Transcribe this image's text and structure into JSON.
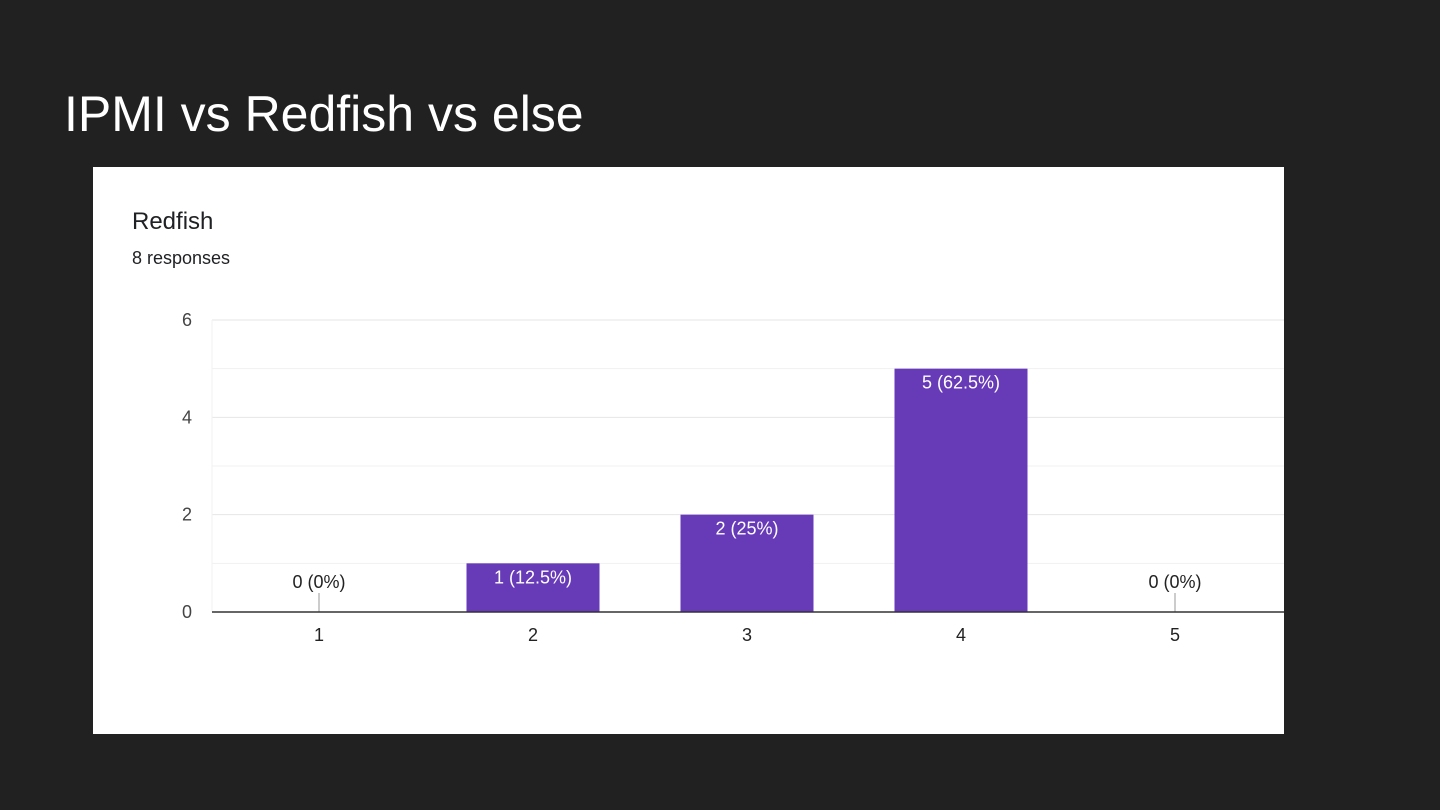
{
  "slide": {
    "title": "IPMI vs Redfish vs else"
  },
  "chart_data": {
    "type": "bar",
    "title": "Redfish",
    "subtitle": "8 responses",
    "categories": [
      "1",
      "2",
      "3",
      "4",
      "5"
    ],
    "values": [
      0,
      1,
      2,
      5,
      0
    ],
    "data_labels": [
      "0 (0%)",
      "1 (12.5%)",
      "2 (25%)",
      "5 (62.5%)",
      "0 (0%)"
    ],
    "ylim": [
      0,
      6
    ],
    "yticks": [
      0,
      2,
      4,
      6
    ],
    "minor_gridlines": [
      1,
      3,
      5
    ],
    "grid": true,
    "bar_color": "#673ab7"
  }
}
